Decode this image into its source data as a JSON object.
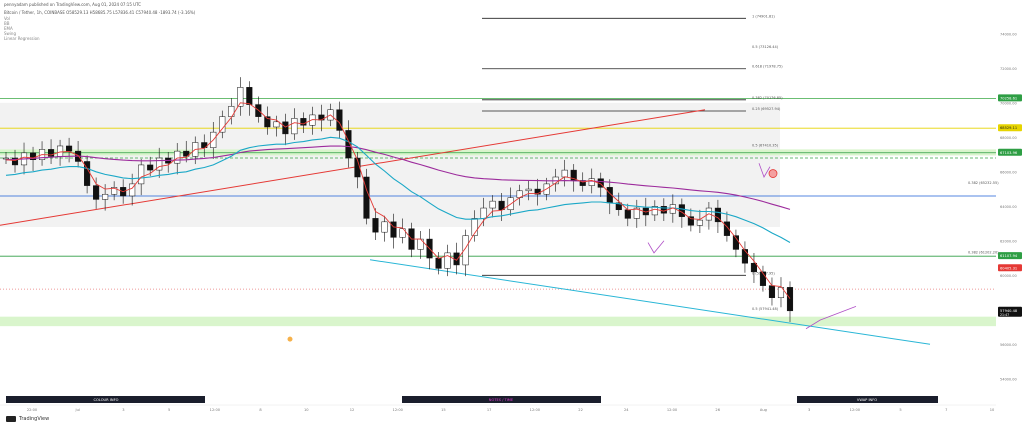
{
  "header": {
    "author": "pennyadam published on TradingView.com, Aug 01, 2024 07:15 UTC",
    "symbol": "Bitcoin / Tether, 1h, COINBASE  O58529.13  H58685.75  L57836.41  C57940.48  -1893.74 (-3.16%)",
    "indicators": [
      "Vol",
      "BB",
      "EMA",
      "Swing",
      "Linear Regression"
    ]
  },
  "footer": {
    "logo_text": "TradingView"
  },
  "labels": {
    "section_left": "COLOUR INFO",
    "section_middle": "NOTES / TIME",
    "section_right": "VWAP INFO"
  },
  "chart_data": {
    "type": "line",
    "series_type": "candlestick",
    "symbol": "BTCUSDT",
    "timeframe": "1h",
    "xlabel": "",
    "ylabel": "",
    "y_axis_ticks": [
      74000,
      72000,
      70000,
      68000,
      66000,
      64000,
      62000,
      60000,
      58000,
      56000,
      54000
    ],
    "x_axis_ticks": [
      "22:00",
      "Jul",
      "3",
      "5",
      "12:00",
      "8",
      "10",
      "12",
      "12:00",
      "15",
      "17",
      "12:00",
      "22",
      "24",
      "12:00",
      "26",
      "Aug",
      "3",
      "12:00",
      "5",
      "7",
      "10"
    ],
    "price_labels": [
      {
        "value": 70258.61,
        "color": "#2e9e44"
      },
      {
        "value": 68529.11,
        "color": "#e6d400"
      },
      {
        "value": 67103.96,
        "color": "#2e9e44"
      },
      {
        "value": 61107.94,
        "color": "#2e9e44"
      },
      {
        "value": 60405.31,
        "color": "#e53935"
      },
      {
        "value": 57940.48,
        "color": "#111111",
        "subtext": "21:47"
      }
    ],
    "fib_levels": [
      {
        "label": "1 (74901.81)",
        "value": 74901.81
      },
      {
        "label": "0.618 (71978.75)",
        "value": 71978.75
      },
      {
        "label": "0.382 (70176.85)",
        "value": 70176.85
      },
      {
        "label": "0.25 (69527.94)",
        "value": 69527.94
      },
      {
        "label": "0 (59997.95)",
        "value": 59997.95
      },
      {
        "label": "0.5 (73126.44)",
        "value": 73126.44
      },
      {
        "label": "0.5 (67410.35)",
        "value": 67410.35
      },
      {
        "label": "0.382 (65232.55)",
        "value": 65232.55
      },
      {
        "label": "0.5 (57941.48)",
        "value": 57941.48
      },
      {
        "label": "0.382 (61202.20)",
        "value": 61202.2
      }
    ],
    "line_levels": [
      {
        "value": 70258.61,
        "color": "#3aa845"
      },
      {
        "value": 68529.11,
        "color": "#e6d400"
      },
      {
        "value": 67103.96,
        "color": "#2e9e44"
      },
      {
        "value": 61107.94,
        "color": "#2e9e44"
      },
      {
        "value": 64600,
        "color": "#1e5fd6"
      }
    ],
    "close_series": [
      66800,
      66400,
      67100,
      66700,
      67300,
      66900,
      67500,
      67200,
      66600,
      65200,
      64400,
      64700,
      65100,
      64600,
      65300,
      66400,
      66100,
      66800,
      66500,
      67200,
      66900,
      67700,
      67400,
      68300,
      69200,
      69800,
      70900,
      69900,
      69200,
      68600,
      68900,
      68200,
      69100,
      68700,
      69300,
      69000,
      69600,
      68400,
      66800,
      65700,
      63300,
      62500,
      63100,
      62200,
      62700,
      61500,
      62100,
      61000,
      60400,
      61300,
      60600,
      62300,
      63300,
      63900,
      64300,
      63800,
      64500,
      64900,
      65000,
      64700,
      65300,
      65700,
      66100,
      65500,
      65200,
      65600,
      65100,
      64200,
      63800,
      63300,
      63900,
      63500,
      64000,
      63600,
      64100,
      63400,
      62900,
      63200,
      63900,
      63100,
      62300,
      61500,
      60700,
      60200,
      59400,
      58700,
      59300,
      57940
    ],
    "ema_fast": [
      66700,
      66650,
      66850,
      66800,
      67000,
      66980,
      67150,
      67180,
      66950,
      66200,
      65300,
      65000,
      65050,
      64850,
      65050,
      65700,
      65900,
      66300,
      66400,
      66800,
      66850,
      67300,
      67350,
      67850,
      68500,
      69150,
      70000,
      69950,
      69580,
      69100,
      69000,
      68600,
      68850,
      68780,
      69030,
      69010,
      69300,
      68850,
      67800,
      66700,
      64950,
      63700,
      63400,
      62800,
      62750,
      62100,
      62100,
      61550,
      60980,
      61140,
      60870,
      61580,
      62440,
      63170,
      63730,
      63760,
      64130,
      64510,
      64750,
      64730,
      65010,
      65350,
      65720,
      65610,
      65410,
      65500,
      65300,
      64750,
      64280,
      63790,
      63840,
      63670,
      63830,
      63720,
      63910,
      63660,
      63280,
      63240,
      63570,
      63340,
      62820,
      62160,
      61430,
      60820,
      60110,
      59400,
      59350,
      58650
    ],
    "ema_mid": [
      65800,
      65850,
      65950,
      66000,
      66100,
      66150,
      66250,
      66300,
      66300,
      66200,
      66000,
      65850,
      65750,
      65650,
      65600,
      65650,
      65700,
      65800,
      65850,
      65950,
      66000,
      66150,
      66250,
      66400,
      66650,
      66900,
      67250,
      67400,
      67500,
      67550,
      67600,
      67600,
      67700,
      67750,
      67850,
      67900,
      68000,
      67950,
      67750,
      67450,
      66950,
      66450,
      66050,
      65600,
      65250,
      64850,
      64550,
      64200,
      63850,
      63600,
      63350,
      63250,
      63250,
      63300,
      63400,
      63450,
      63550,
      63650,
      63750,
      63800,
      63900,
      64000,
      64100,
      64150,
      64200,
      64250,
      64250,
      64200,
      64150,
      64050,
      64000,
      63950,
      63950,
      63900,
      63900,
      63850,
      63750,
      63700,
      63700,
      63650,
      63550,
      63400,
      63200,
      63000,
      62750,
      62450,
      62200,
      61900
    ],
    "ema_slow": [
      66700,
      66720,
      66750,
      66780,
      66820,
      66850,
      66880,
      66900,
      66910,
      66880,
      66820,
      66760,
      66720,
      66680,
      66650,
      66640,
      66640,
      66650,
      66660,
      66680,
      66700,
      66740,
      66780,
      66830,
      66910,
      67000,
      67120,
      67200,
      67250,
      67290,
      67320,
      67340,
      67370,
      67400,
      67430,
      67460,
      67490,
      67500,
      67470,
      67400,
      67280,
      67140,
      67010,
      66860,
      66720,
      66560,
      66420,
      66260,
      66100,
      65960,
      65820,
      65720,
      65650,
      65600,
      65570,
      65540,
      65520,
      65510,
      65500,
      65490,
      65480,
      65480,
      65490,
      65480,
      65470,
      65460,
      65440,
      65400,
      65350,
      65290,
      65240,
      65190,
      65150,
      65100,
      65060,
      65010,
      64950,
      64900,
      64860,
      64810,
      64740,
      64650,
      64540,
      64420,
      64280,
      64120,
      63980,
      63820
    ]
  }
}
